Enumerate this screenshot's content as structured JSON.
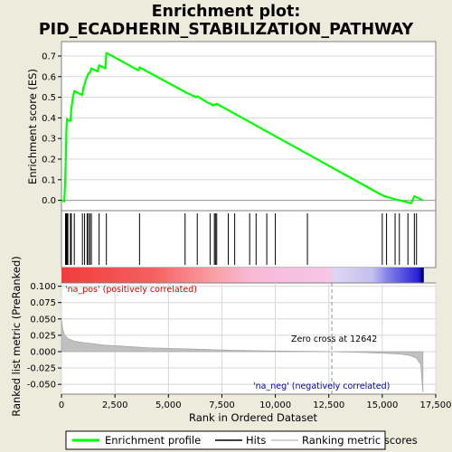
{
  "chart_data": {
    "type": "line",
    "title": "Enrichment plot:",
    "subtitle": "PID_ECADHERIN_STABILIZATION_PATHWAY",
    "top_panel": {
      "ylabel": "Enrichment score (ES)",
      "ylim": [
        -0.05,
        0.77
      ],
      "yticks": [
        0.0,
        0.1,
        0.2,
        0.3,
        0.4,
        0.5,
        0.6,
        0.7
      ],
      "ytick_labels": [
        "0.0",
        "0.1",
        "0.2",
        "0.3",
        "0.4",
        "0.5",
        "0.6",
        "0.7"
      ],
      "grid": true,
      "series": [
        {
          "name": "Enrichment profile",
          "color": "#00ff00",
          "x": [
            0,
            130,
            160,
            185,
            200,
            215,
            230,
            245,
            262,
            300,
            420,
            460,
            520,
            600,
            980,
            1020,
            1080,
            1120,
            1200,
            1260,
            1330,
            1400,
            1700,
            1760,
            2050,
            2100,
            3600,
            3650,
            5700,
            5780,
            6300,
            6350,
            6900,
            6950,
            7080,
            7150,
            7200,
            7260,
            14900,
            15100,
            15600,
            15800,
            16200,
            16350,
            16500,
            16600,
            16900
          ],
          "y": [
            0.0,
            -0.005,
            0.06,
            0.14,
            0.2,
            0.26,
            0.34,
            0.37,
            0.395,
            0.39,
            0.385,
            0.44,
            0.49,
            0.53,
            0.51,
            0.545,
            0.56,
            0.58,
            0.6,
            0.615,
            0.62,
            0.64,
            0.625,
            0.655,
            0.64,
            0.715,
            0.63,
            0.645,
            0.53,
            0.525,
            0.5,
            0.505,
            0.47,
            0.47,
            0.46,
            0.465,
            0.465,
            0.468,
            0.03,
            0.02,
            0.005,
            0.0,
            -0.01,
            -0.015,
            0.02,
            0.015,
            0.0
          ]
        }
      ]
    },
    "hits": {
      "name": "Hits",
      "color": "#000000",
      "x": [
        190,
        215,
        240,
        262,
        300,
        420,
        460,
        600,
        980,
        1080,
        1200,
        1260,
        1330,
        1400,
        1760,
        2100,
        3650,
        5780,
        6350,
        6950,
        7150,
        7200,
        7260,
        7800,
        8100,
        8800,
        9100,
        9600,
        10000,
        11500,
        15000,
        15200,
        15600,
        15800,
        16200,
        16500,
        16600
      ]
    },
    "rank_colorbar": {
      "max_rank": 16900,
      "zero_cross": 12642
    },
    "bottom_panel": {
      "xlabel": "Rank in Ordered Dataset",
      "ylabel": "Ranked list metric (PreRanked)",
      "xlim": [
        0,
        17500
      ],
      "xticks": [
        0,
        2500,
        5000,
        7500,
        10000,
        12500,
        15000,
        17500
      ],
      "xtick_labels": [
        "0",
        "2,500",
        "5,000",
        "7,500",
        "10,000",
        "12,500",
        "15,000",
        "17,500"
      ],
      "ylim": [
        -0.065,
        0.105
      ],
      "yticks": [
        0.1,
        0.075,
        0.05,
        0.025,
        0.0,
        -0.025,
        -0.05
      ],
      "ytick_labels": [
        "0.100",
        "0.075",
        "0.050",
        "0.025",
        "0.000",
        "-0.025",
        "-0.050"
      ],
      "series": [
        {
          "name": "Ranking metric scores",
          "color": "#c0c0c0",
          "x": [
            0,
            50,
            150,
            300,
            600,
            1000,
            1500,
            2000,
            3000,
            4000,
            5000,
            6000,
            7000,
            8000,
            9000,
            10000,
            11000,
            12000,
            12642,
            13000,
            14000,
            14800,
            15400,
            15900,
            16300,
            16600,
            16800,
            16900
          ],
          "y": [
            0.05,
            0.035,
            0.025,
            0.02,
            0.016,
            0.014,
            0.012,
            0.01,
            0.008,
            0.006,
            0.005,
            0.004,
            0.003,
            0.002,
            0.0015,
            0.001,
            0.0006,
            0.0002,
            0.0,
            -0.0003,
            -0.001,
            -0.002,
            -0.003,
            -0.004,
            -0.006,
            -0.01,
            -0.02,
            -0.062
          ]
        }
      ],
      "annotations": {
        "pos_label": "'na_pos' (positively correlated)",
        "pos_color": "#cc0000",
        "neg_label": "'na_neg' (negatively correlated)",
        "neg_color": "#0000aa",
        "zero_cross_label": "Zero cross at 12642"
      }
    },
    "legend": {
      "position": "bottom",
      "entries": [
        {
          "label": "Enrichment profile",
          "color": "#00ff00",
          "style": "thick-line"
        },
        {
          "label": "Hits",
          "color": "#000000",
          "style": "line"
        },
        {
          "label": "Ranking metric scores",
          "color": "#c0c0c0",
          "style": "line"
        }
      ]
    }
  }
}
